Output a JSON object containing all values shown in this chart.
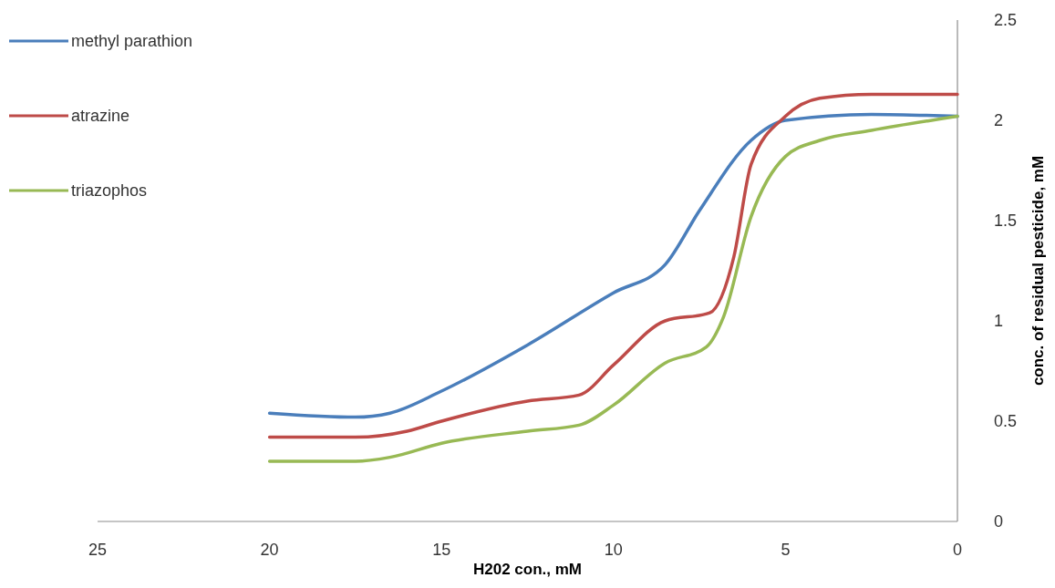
{
  "chart_data": {
    "type": "line",
    "xlabel": "H202 con., mM",
    "ylabel": "conc. of residual pesticide, mM",
    "xlim": [
      25,
      0
    ],
    "xticks": [
      25,
      20,
      15,
      10,
      5,
      0
    ],
    "ylim": [
      0,
      2.5
    ],
    "yticks": [
      0,
      0.5,
      1,
      1.5,
      2,
      2.5
    ],
    "legend": "top left",
    "grid": false,
    "series": [
      {
        "name": "methyl parathion",
        "color": "#4a7ebb",
        "x": [
          20,
          17.5,
          16.5,
          15,
          12.5,
          10,
          8.5,
          7.5,
          6,
          5,
          2.5,
          0
        ],
        "values": [
          0.54,
          0.52,
          0.54,
          0.65,
          0.88,
          1.14,
          1.28,
          1.55,
          1.9,
          2.0,
          2.03,
          2.02
        ]
      },
      {
        "name": "atrazine",
        "color": "#be4b48",
        "x": [
          20,
          17.5,
          16,
          15,
          12.5,
          11,
          10,
          8.5,
          7.2,
          6.5,
          6,
          5,
          4,
          2.5,
          0
        ],
        "values": [
          0.42,
          0.42,
          0.45,
          0.5,
          0.6,
          0.63,
          0.78,
          1.0,
          1.04,
          1.32,
          1.78,
          2.02,
          2.11,
          2.13,
          2.13
        ]
      },
      {
        "name": "triazophos",
        "color": "#98b954",
        "x": [
          20,
          17.5,
          16.5,
          15,
          12.5,
          11,
          10,
          8.5,
          7.3,
          6.8,
          6,
          5,
          4,
          2.5,
          0
        ],
        "values": [
          0.3,
          0.3,
          0.32,
          0.39,
          0.45,
          0.48,
          0.58,
          0.79,
          0.87,
          1.02,
          1.52,
          1.82,
          1.9,
          1.95,
          2.02
        ]
      }
    ]
  }
}
